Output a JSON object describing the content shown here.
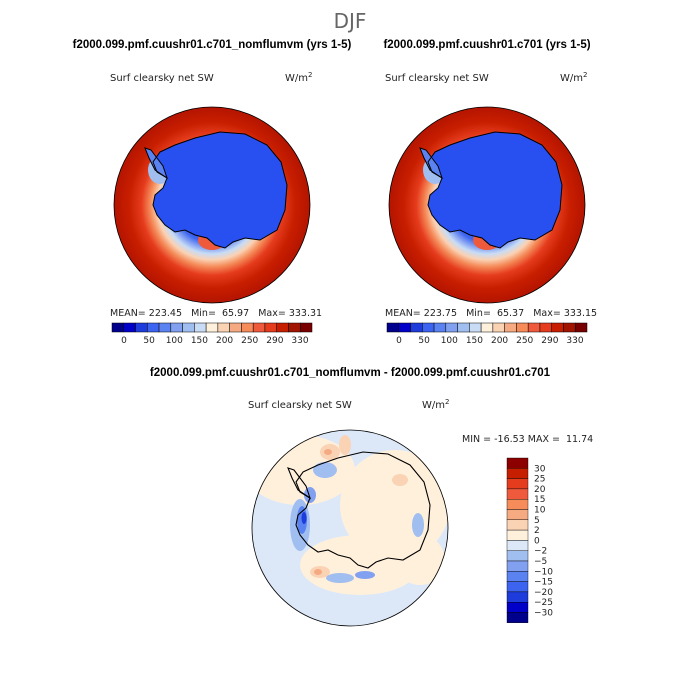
{
  "figure": {
    "season": "DJF",
    "top_left_title": "f2000.099.pmf.cuushr01.c701_nomflumvm (yrs 1-5)",
    "top_right_title": "f2000.099.pmf.cuushr01.c701 (yrs 1-5)",
    "diff_title": "f2000.099.pmf.cuushr01.c701_nomflumvm - f2000.099.pmf.cuushr01.c701"
  },
  "chart_data": [
    {
      "type": "heatmap",
      "projection": "south polar stereographic",
      "variable": "Surf clearsky net SW",
      "units": "W/m",
      "units_superscript": "2",
      "stats_text": "MEAN= 223.45   Min=  65.97   Max= 333.31",
      "mean": 223.45,
      "min": 65.97,
      "max": 333.31,
      "levels": [
        0,
        50,
        100,
        150,
        200,
        250,
        290,
        330
      ],
      "level_labels": [
        "0",
        "50",
        "100",
        "150",
        "200",
        "250",
        "290",
        "330"
      ],
      "colors": [
        "#00008c",
        "#0000c8",
        "#1e3cdc",
        "#3c64f0",
        "#5a82f0",
        "#82a0f0",
        "#a0bef0",
        "#c8dcf5",
        "#fff0dc",
        "#fad2b4",
        "#f5aa82",
        "#f58c5a",
        "#f05a3c",
        "#e63c1e",
        "#c81e00",
        "#a01400",
        "#780000"
      ]
    },
    {
      "type": "heatmap",
      "projection": "south polar stereographic",
      "variable": "Surf clearsky net SW",
      "units": "W/m",
      "units_superscript": "2",
      "stats_text": "MEAN= 223.75   Min=  65.37   Max= 333.15",
      "mean": 223.75,
      "min": 65.37,
      "max": 333.15,
      "levels": [
        0,
        50,
        100,
        150,
        200,
        250,
        290,
        330
      ],
      "level_labels": [
        "0",
        "50",
        "100",
        "150",
        "200",
        "250",
        "290",
        "330"
      ],
      "colors": [
        "#00008c",
        "#0000c8",
        "#1e3cdc",
        "#3c64f0",
        "#5a82f0",
        "#82a0f0",
        "#a0bef0",
        "#c8dcf5",
        "#fff0dc",
        "#fad2b4",
        "#f5aa82",
        "#f58c5a",
        "#f05a3c",
        "#e63c1e",
        "#c81e00",
        "#a01400",
        "#780000"
      ]
    },
    {
      "type": "heatmap",
      "projection": "south polar stereographic",
      "variable": "Surf clearsky net SW",
      "units": "W/m",
      "units_superscript": "2",
      "stats_text": "MIN = -16.53 MAX =  11.74",
      "min": -16.53,
      "max": 11.74,
      "levels": [
        30,
        25,
        20,
        15,
        10,
        5,
        2,
        0,
        -2,
        -5,
        -10,
        -15,
        -20,
        -25,
        -30
      ],
      "level_labels": [
        "30",
        "25",
        "20",
        "15",
        "10",
        "5",
        "2",
        "0",
        "−2",
        "−5",
        "−10",
        "−15",
        "−20",
        "−25",
        "−30"
      ],
      "colors": [
        "#8c0000",
        "#c81e00",
        "#e63c1e",
        "#f05a3c",
        "#f58c5a",
        "#f5aa82",
        "#fad2b4",
        "#fff0dc",
        "#dce8f8",
        "#a0bef0",
        "#82a0f0",
        "#5a82f0",
        "#3c64f0",
        "#1e3cdc",
        "#0000c8",
        "#00008c"
      ]
    }
  ]
}
